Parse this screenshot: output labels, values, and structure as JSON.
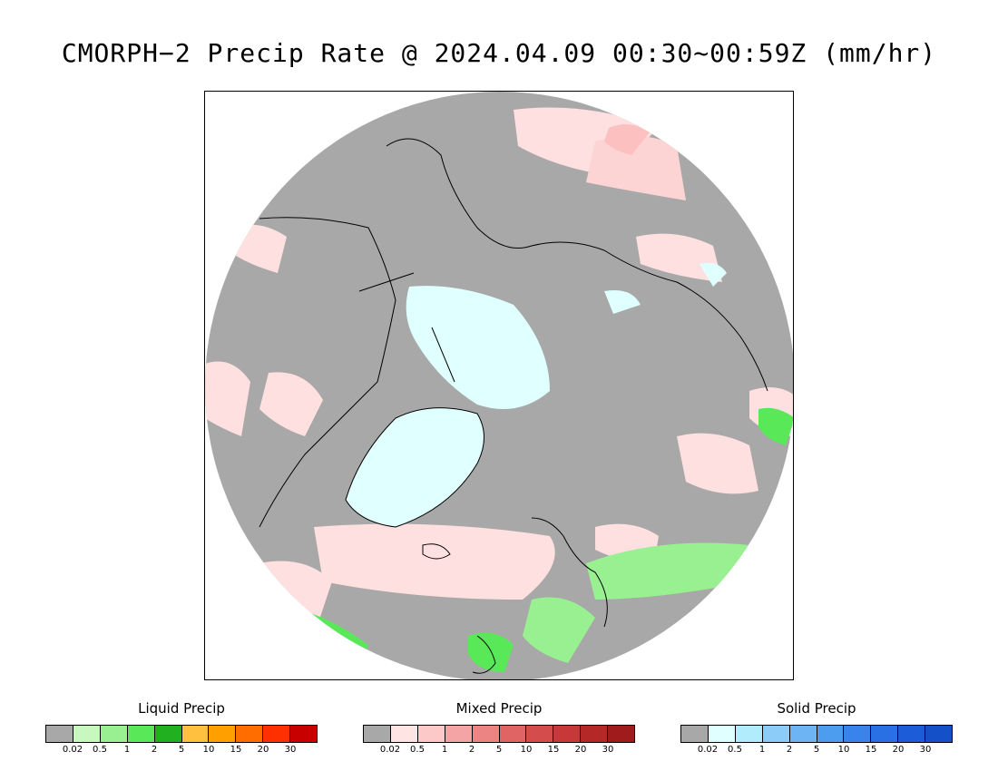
{
  "title": "CMORPH−2 Precip Rate @ 2024.04.09 00:30~00:59Z (mm/hr)",
  "colors": {
    "no_precip": "#a8a8a8",
    "outside": "#ffffff",
    "coast": "#000000"
  },
  "legends": [
    {
      "title": "Liquid Precip",
      "colors": [
        "#a8a8a8",
        "#c8f8c0",
        "#98f090",
        "#58e858",
        "#20b020",
        "#ffc040",
        "#ffa000",
        "#ff6c00",
        "#ff3000",
        "#c80000"
      ],
      "ticks": [
        "0.02",
        "0.5",
        "1",
        "2",
        "5",
        "10",
        "15",
        "20",
        "30"
      ]
    },
    {
      "title": "Mixed Precip",
      "colors": [
        "#a8a8a8",
        "#ffe4e4",
        "#fcc8c8",
        "#f4a4a4",
        "#ec8484",
        "#e06464",
        "#d44c4c",
        "#c83838",
        "#b42828",
        "#a01c1c"
      ],
      "ticks": [
        "0.02",
        "0.5",
        "1",
        "2",
        "5",
        "10",
        "15",
        "20",
        "30"
      ]
    },
    {
      "title": "Solid Precip",
      "colors": [
        "#a8a8a8",
        "#e0ffff",
        "#b0ecfc",
        "#8cccf8",
        "#6cb4f4",
        "#4c9cf0",
        "#3884ec",
        "#2870e4",
        "#1c5cd8",
        "#1450c8"
      ],
      "ticks": [
        "0.02",
        "0.5",
        "1",
        "2",
        "5",
        "10",
        "15",
        "20",
        "30"
      ]
    }
  ]
}
